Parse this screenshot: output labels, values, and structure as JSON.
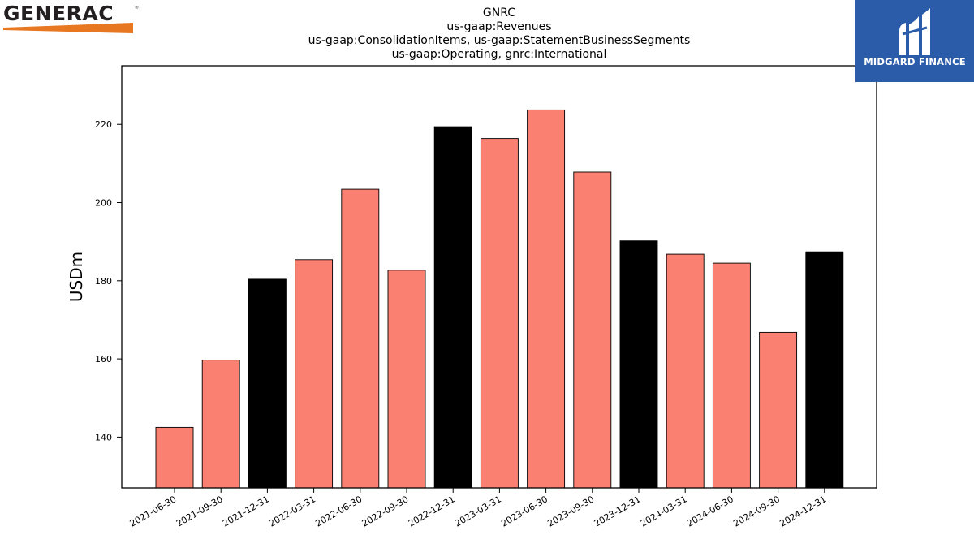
{
  "logos": {
    "generac": {
      "text": "GENERAC",
      "color": "#231f20",
      "accent": "#e87722"
    },
    "midgard": {
      "text": "MIDGARD FINANCE",
      "background": "#2a5caa",
      "mark": "midgard-m-icon"
    }
  },
  "chart_data": {
    "type": "bar",
    "title": [
      "GNRC",
      "us-gaap:Revenues",
      "us-gaap:ConsolidationItems, us-gaap:StatementBusinessSegments",
      "us-gaap:Operating, gnrc:International"
    ],
    "xlabel": "",
    "ylabel": "USDm",
    "ylim": [
      127,
      235
    ],
    "yticks": [
      140,
      160,
      180,
      200,
      220
    ],
    "grid": false,
    "legend": "none",
    "categories": [
      "2021-06-30",
      "2021-09-30",
      "2021-12-31",
      "2022-03-31",
      "2022-06-30",
      "2022-09-30",
      "2022-12-31",
      "2023-03-31",
      "2023-06-30",
      "2023-09-30",
      "2023-12-31",
      "2024-03-31",
      "2024-06-30",
      "2024-09-30",
      "2024-12-31"
    ],
    "values": [
      142.5,
      159.7,
      180.4,
      185.4,
      203.4,
      182.7,
      219.4,
      216.4,
      223.7,
      207.8,
      190.2,
      186.8,
      184.5,
      166.8,
      187.4
    ],
    "colors": {
      "quarter": "#fa8072",
      "year_end": "#000000",
      "edge": "#000000"
    }
  }
}
